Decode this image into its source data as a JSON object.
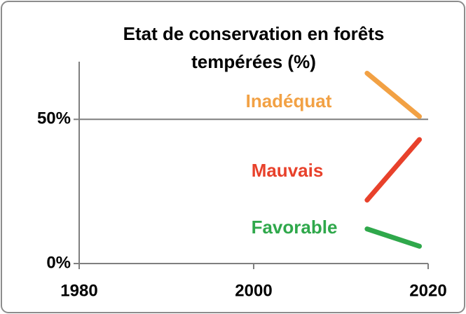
{
  "chart_data": {
    "type": "line",
    "title": [
      "Etat de conservation en forêts",
      "tempérées (%)"
    ],
    "x": [
      2013,
      2019
    ],
    "series": [
      {
        "name": "Inadéquat",
        "color": "#f2a144",
        "values": [
          66,
          51
        ]
      },
      {
        "name": "Mauvais",
        "color": "#e8412b",
        "values": [
          22,
          43
        ]
      },
      {
        "name": "Favorable",
        "color": "#2fa84b",
        "values": [
          12,
          6
        ]
      }
    ],
    "xlim": [
      1980,
      2020
    ],
    "xticks": [
      1980,
      2000,
      2020
    ],
    "ylim": [
      0,
      70
    ],
    "yticks": [
      {
        "value": 0,
        "label": "0%"
      },
      {
        "value": 50,
        "label": "50%"
      }
    ],
    "grid": true
  }
}
